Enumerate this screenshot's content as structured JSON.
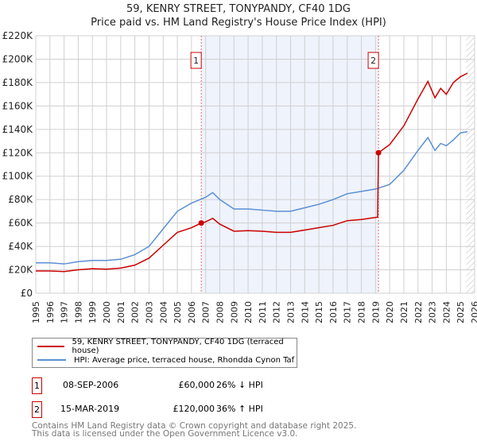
{
  "chart_data": {
    "type": "line",
    "title": "59, KENRY STREET, TONYPANDY, CF40 1DG",
    "subtitle": "Price paid vs. HM Land Registry's House Price Index (HPI)",
    "xlim": [
      1995,
      2026
    ],
    "ylim": [
      0,
      220000
    ],
    "yticks": [
      0,
      20000,
      40000,
      60000,
      80000,
      100000,
      120000,
      140000,
      160000,
      180000,
      200000,
      220000
    ],
    "ytick_labels": [
      "£0",
      "£20K",
      "£40K",
      "£60K",
      "£80K",
      "£100K",
      "£120K",
      "£140K",
      "£160K",
      "£180K",
      "£200K",
      "£220K"
    ],
    "xticks": [
      "1995",
      "1996",
      "1997",
      "1998",
      "1999",
      "2000",
      "2001",
      "2002",
      "2003",
      "2004",
      "2005",
      "2006",
      "2007",
      "2008",
      "2009",
      "2010",
      "2011",
      "2012",
      "2013",
      "2014",
      "2015",
      "2016",
      "2017",
      "2018",
      "2019",
      "2020",
      "2021",
      "2022",
      "2023",
      "2024",
      "2025",
      "2026"
    ],
    "grid": true,
    "series": [
      {
        "name": "59, KENRY STREET, TONYPANDY, CF40 1DG (terraced house)",
        "color": "#cc0000",
        "x": [
          1995,
          1996,
          1997,
          1998,
          1999,
          2000,
          2001,
          2002,
          2003,
          2004,
          2005,
          2006,
          2006.69,
          2007,
          2007.5,
          2008,
          2009,
          2010,
          2011,
          2012,
          2013,
          2014,
          2015,
          2016,
          2017,
          2018,
          2019.15,
          2019.21,
          2020,
          2021,
          2022,
          2022.7,
          2023.2,
          2023.6,
          2024,
          2024.5,
          2025,
          2025.5
        ],
        "y": [
          19000,
          19000,
          18500,
          20000,
          21000,
          20500,
          21500,
          24000,
          30000,
          41000,
          52000,
          56000,
          60000,
          61000,
          64000,
          59000,
          53000,
          53500,
          53000,
          52000,
          52000,
          54000,
          56000,
          58000,
          62000,
          63000,
          65000,
          120000,
          127000,
          143000,
          166000,
          181000,
          167000,
          175000,
          170000,
          180000,
          185000,
          188000
        ]
      },
      {
        "name": "HPI: Average price, terraced house, Rhondda Cynon Taf",
        "color": "#5b8fd4",
        "x": [
          1995,
          1996,
          1997,
          1998,
          1999,
          2000,
          2001,
          2002,
          2003,
          2004,
          2005,
          2006,
          2007,
          2007.5,
          2008,
          2009,
          2010,
          2011,
          2012,
          2013,
          2014,
          2015,
          2016,
          2017,
          2018,
          2019,
          2020,
          2021,
          2022,
          2022.7,
          2023.2,
          2023.6,
          2024,
          2024.5,
          2025,
          2025.5
        ],
        "y": [
          26000,
          26000,
          25000,
          27000,
          28000,
          28000,
          29000,
          33000,
          40000,
          55000,
          70000,
          77000,
          82000,
          86000,
          80000,
          72000,
          72000,
          71000,
          70000,
          70000,
          73000,
          76000,
          80000,
          85000,
          87000,
          89000,
          93000,
          105000,
          122000,
          133000,
          122000,
          128000,
          126000,
          131000,
          137000,
          138000
        ]
      }
    ],
    "sales": [
      {
        "id": "1",
        "x": 2006.69,
        "price": 60000,
        "date": "08-SEP-2006",
        "price_label": "£60,000",
        "hpi": "26% ↓ HPI"
      },
      {
        "id": "2",
        "x": 2019.21,
        "price": 120000,
        "date": "15-MAR-2019",
        "price_label": "£120,000",
        "hpi": "36% ↑ HPI"
      }
    ],
    "hatch_from": 2025.4
  },
  "footer": {
    "line1": "Contains HM Land Registry data © Crown copyright and database right 2025.",
    "line2": "This data is licensed under the Open Government Licence v3.0."
  }
}
